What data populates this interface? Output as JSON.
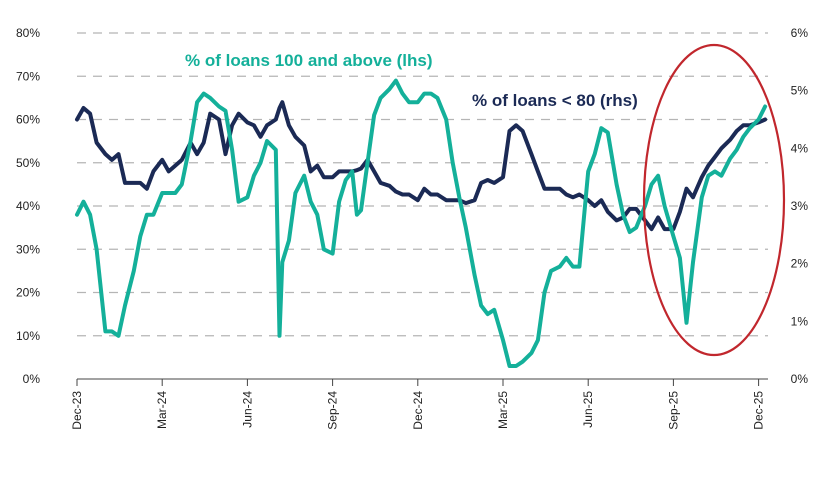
{
  "chart_data": {
    "type": "line",
    "title": "",
    "xlabel": "",
    "ylabel_left": "",
    "ylabel_right": "",
    "x_ticks": [
      "Dec-23",
      "Mar-24",
      "Jun-24",
      "Sep-24",
      "Dec-24",
      "Mar-25",
      "Jun-25",
      "Sep-25",
      "Dec-25"
    ],
    "y_left_ticks": [
      "0%",
      "10%",
      "20%",
      "30%",
      "40%",
      "50%",
      "60%",
      "70%",
      "80%"
    ],
    "y_right_ticks": [
      "0%",
      "1%",
      "2%",
      "3%",
      "4%",
      "5%",
      "6%"
    ],
    "y_left_range": [
      0,
      80
    ],
    "y_right_range": [
      0,
      6
    ],
    "grid": "horizontal dashed",
    "x": [
      "2023-12-01",
      "2023-12-08",
      "2023-12-15",
      "2023-12-22",
      "2024-01-01",
      "2024-01-08",
      "2024-01-15",
      "2024-01-22",
      "2024-02-01",
      "2024-02-08",
      "2024-02-15",
      "2024-02-22",
      "2024-03-01",
      "2024-03-08",
      "2024-03-15",
      "2024-03-22",
      "2024-04-01",
      "2024-04-08",
      "2024-04-15",
      "2024-04-22",
      "2024-05-01",
      "2024-05-08",
      "2024-05-15",
      "2024-05-22",
      "2024-06-01",
      "2024-06-08",
      "2024-06-15",
      "2024-06-22",
      "2024-07-01",
      "2024-07-05",
      "2024-07-08",
      "2024-07-15",
      "2024-07-22",
      "2024-08-01",
      "2024-08-08",
      "2024-08-15",
      "2024-08-22",
      "2024-09-01",
      "2024-09-08",
      "2024-09-15",
      "2024-09-22",
      "2024-09-27",
      "2024-10-01",
      "2024-10-08",
      "2024-10-15",
      "2024-10-22",
      "2024-11-01",
      "2024-11-08",
      "2024-11-15",
      "2024-11-22",
      "2024-12-01",
      "2024-12-08",
      "2024-12-15",
      "2024-12-22",
      "2025-01-01",
      "2025-01-08",
      "2025-01-15",
      "2025-01-22",
      "2025-02-01",
      "2025-02-08",
      "2025-02-15",
      "2025-02-22",
      "2025-03-01",
      "2025-03-08",
      "2025-03-15",
      "2025-03-22",
      "2025-04-01",
      "2025-04-08",
      "2025-04-15",
      "2025-04-22",
      "2025-05-01",
      "2025-05-08",
      "2025-05-15",
      "2025-05-22",
      "2025-06-01",
      "2025-06-08",
      "2025-06-15",
      "2025-06-22",
      "2025-07-01",
      "2025-07-08",
      "2025-07-15",
      "2025-07-22",
      "2025-08-01",
      "2025-08-08",
      "2025-08-15",
      "2025-08-22",
      "2025-09-01",
      "2025-09-08",
      "2025-09-15",
      "2025-09-22",
      "2025-10-01",
      "2025-10-08",
      "2025-10-15",
      "2025-10-22",
      "2025-11-01",
      "2025-11-08",
      "2025-11-15",
      "2025-11-22",
      "2025-12-01",
      "2025-12-08"
    ],
    "series": [
      {
        "name": "% of loans 100 and above (lhs)",
        "axis": "left",
        "color": "#14b09a",
        "values": [
          38,
          41,
          38,
          30,
          11,
          11,
          10,
          17,
          25,
          33,
          38,
          38,
          43,
          43,
          43,
          45,
          55,
          64,
          66,
          65,
          63,
          62,
          53,
          41,
          42,
          47,
          50,
          55,
          53,
          10,
          27,
          32,
          43,
          47,
          41,
          38,
          30,
          29,
          41,
          46,
          48,
          38,
          39,
          50,
          61,
          65,
          67,
          69,
          66,
          64,
          64,
          66,
          66,
          65,
          60,
          50,
          42,
          35,
          24,
          17,
          15,
          16,
          9,
          3,
          3,
          4,
          6,
          9,
          20,
          25,
          26,
          28,
          26,
          26,
          48,
          52,
          58,
          57,
          45,
          38,
          34,
          35,
          40,
          45,
          47,
          40,
          33,
          28,
          13,
          27,
          42,
          47,
          48,
          47,
          51,
          53,
          56,
          58,
          60,
          63
        ]
      },
      {
        "name": "% of loans < 80 (rhs)",
        "axis": "right",
        "color": "#1b2a55",
        "values": [
          4.5,
          4.7,
          4.6,
          4.1,
          3.9,
          3.8,
          3.9,
          3.4,
          3.4,
          3.4,
          3.3,
          3.6,
          3.8,
          3.6,
          3.7,
          3.8,
          4.1,
          3.9,
          4.1,
          4.6,
          4.5,
          3.9,
          4.4,
          4.6,
          4.45,
          4.4,
          4.2,
          4.4,
          4.5,
          4.7,
          4.8,
          4.4,
          4.2,
          4.05,
          3.6,
          3.7,
          3.5,
          3.5,
          3.6,
          3.6,
          3.6,
          3.62,
          3.65,
          3.8,
          3.6,
          3.4,
          3.35,
          3.25,
          3.2,
          3.2,
          3.1,
          3.3,
          3.2,
          3.2,
          3.1,
          3.1,
          3.1,
          3.05,
          3.1,
          3.4,
          3.45,
          3.4,
          3.5,
          4.3,
          4.4,
          4.3,
          3.9,
          3.6,
          3.3,
          3.3,
          3.3,
          3.2,
          3.15,
          3.2,
          3.1,
          3.0,
          3.1,
          2.9,
          2.75,
          2.8,
          2.95,
          2.95,
          2.75,
          2.6,
          2.8,
          2.6,
          2.6,
          2.9,
          3.3,
          3.15,
          3.5,
          3.7,
          3.85,
          4.0,
          4.15,
          4.3,
          4.4,
          4.4,
          4.45,
          4.5
        ]
      }
    ],
    "annotations": [
      {
        "type": "ellipse",
        "color": "#c1272d",
        "around": "Aug-25 to Dec-25"
      }
    ]
  }
}
